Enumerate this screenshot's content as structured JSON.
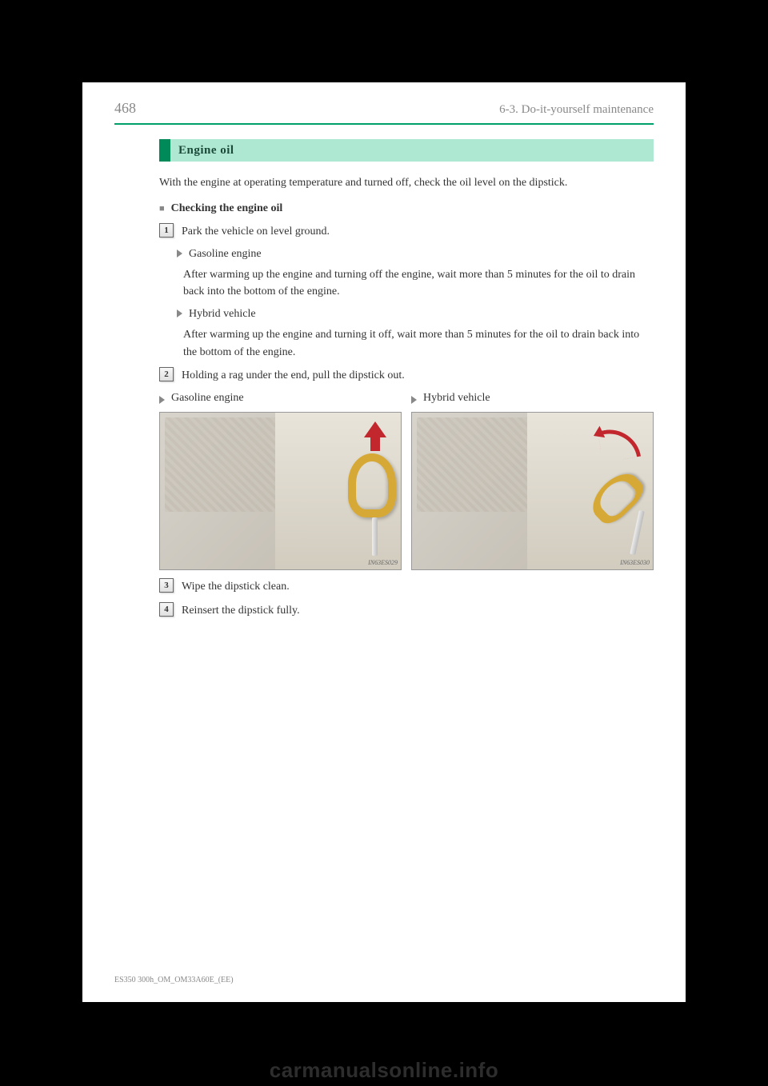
{
  "page_number": "468",
  "chapter": "6-3. Do-it-yourself maintenance",
  "section_title": "Engine oil",
  "intro": "With the engine at operating temperature and turned off, check the oil level on the dipstick.",
  "subhead": "Checking the engine oil",
  "steps": {
    "s1": {
      "num": "1",
      "text": "Park the vehicle on level ground.",
      "variants": {
        "a": {
          "label": "Gasoline engine",
          "detail": "After warming up the engine and turning off the engine, wait more than 5 minutes for the oil to drain back into the bottom of the engine."
        },
        "b": {
          "label": "Hybrid vehicle",
          "detail": "After warming up the engine and turning it off, wait more than 5 minutes for the oil to drain back into the bottom of the engine."
        }
      }
    },
    "s2": {
      "num": "2",
      "text": "Holding a rag under the end, pull the dipstick out.",
      "cols": {
        "a": {
          "label": "Gasoline engine",
          "img_credit": "IN63ES029"
        },
        "b": {
          "label": "Hybrid vehicle",
          "img_credit": "IN63ES030"
        }
      }
    },
    "s3": {
      "num": "3",
      "text": "Wipe the dipstick clean."
    },
    "s4": {
      "num": "4",
      "text": "Reinsert the dipstick fully."
    }
  },
  "footer_code": "ES350 300h_OM_OM33A60E_(EE)",
  "watermark": "carmanualsonline.info",
  "colors": {
    "hr": "#00a06b",
    "section_tab": "#008a5a",
    "section_bg": "#aee8d2",
    "section_text": "#1c4a3a",
    "arrow": "#c1272d",
    "handle": "#d6a836"
  }
}
